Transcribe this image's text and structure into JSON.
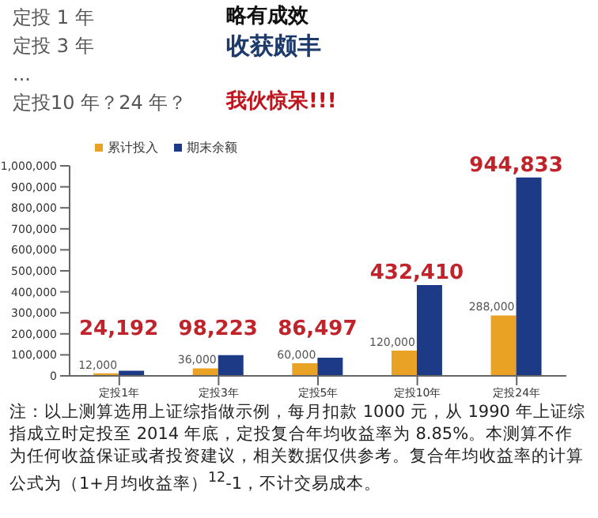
{
  "chart_data": {
    "type": "bar",
    "annotations": [
      "定投 1 年",
      "略有成效",
      "定投 3 年",
      "收获颇丰",
      "...",
      "定投10 年？24 年？",
      "我伙惊呆!!!",
      "注：以上测算选用上证综指做示例，每月扣款 1000 元，从 1990 年上证综指成立时定投至 2014 年底，定投复合年均收益率为 8.85%。本测算不作为任何收益保证或者投资建议，相关数据仅供参考。复合年均收益率的计算公式为（1+月均收益率）$^{12}$-1，不计交易成本。"
    ],
    "categories": [
      "定投1年",
      "定投3年",
      "定投5年",
      "定投10年",
      "定投24年"
    ],
    "series": [
      {
        "name": "累计投入",
        "color": "#e9a224",
        "values": [
          12000,
          36000,
          60000,
          120000,
          288000
        ],
        "value_labels": [
          "12,000",
          "36,000",
          "60,000",
          "120,000",
          "288,000"
        ]
      },
      {
        "name": "期末余额",
        "color": "#1c3a85",
        "values": [
          24192,
          98223,
          86497,
          432410,
          944833
        ],
        "value_labels": [
          "24,192",
          "98,223",
          "86,497",
          "432,410",
          "944,833"
        ]
      }
    ],
    "ylim": [
      0,
      1000000
    ],
    "yticks": [
      0,
      {
        "value": 100000,
        "label": "100,000"
      },
      {
        "value": 200000,
        "label": "200,000"
      },
      {
        "value": 300000,
        "label": "300,000"
      },
      {
        "value": 400000,
        "label": "400,000"
      },
      {
        "value": 500000,
        "label": "500,000"
      },
      {
        "value": 600000,
        "label": "600,000"
      },
      {
        "value": 700000,
        "label": "700,000"
      },
      {
        "value": 800000,
        "label": "800,000"
      },
      {
        "value": 900000,
        "label": "900,000"
      },
      {
        "value": 1000000,
        "label": "1,000,000"
      }
    ],
    "legend": "top left"
  }
}
